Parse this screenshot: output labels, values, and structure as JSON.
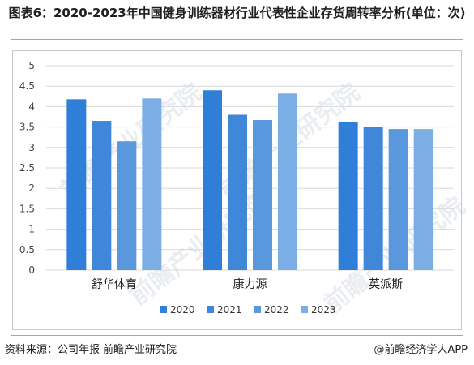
{
  "title": "图表6：2020-2023年中国健身训练器材行业代表性企业存货周转率分析(单位：次)",
  "watermark": "前瞻产业研究院",
  "watermark_sub": "产业研究院 · 前瞻经济学人",
  "footer": {
    "source_label": "资料来源：公司年报",
    "source_org": "前瞻产业研究院",
    "credit": "@前瞻经济学人APP"
  },
  "colors": {
    "2020": "#2f7fd8",
    "2021": "#3f87d9",
    "2022": "#5a98dd",
    "2023": "#7aaee5",
    "grid": "#d9d9d9",
    "axis_text": "#444444"
  },
  "chart_data": {
    "type": "bar",
    "categories": [
      "舒华体育",
      "康力源",
      "英派斯"
    ],
    "series": [
      {
        "name": "2020",
        "values": [
          4.18,
          4.4,
          3.63
        ]
      },
      {
        "name": "2021",
        "values": [
          3.65,
          3.8,
          3.5
        ]
      },
      {
        "name": "2022",
        "values": [
          3.15,
          3.67,
          3.45
        ]
      },
      {
        "name": "2023",
        "values": [
          4.2,
          4.32,
          3.45
        ]
      }
    ],
    "ylim": [
      0,
      5
    ],
    "yticks": [
      "0",
      "0.5",
      "1",
      "1.5",
      "2",
      "2.5",
      "3",
      "3.5",
      "4",
      "4.5",
      "5"
    ],
    "grid": true,
    "legend": "bottom"
  }
}
